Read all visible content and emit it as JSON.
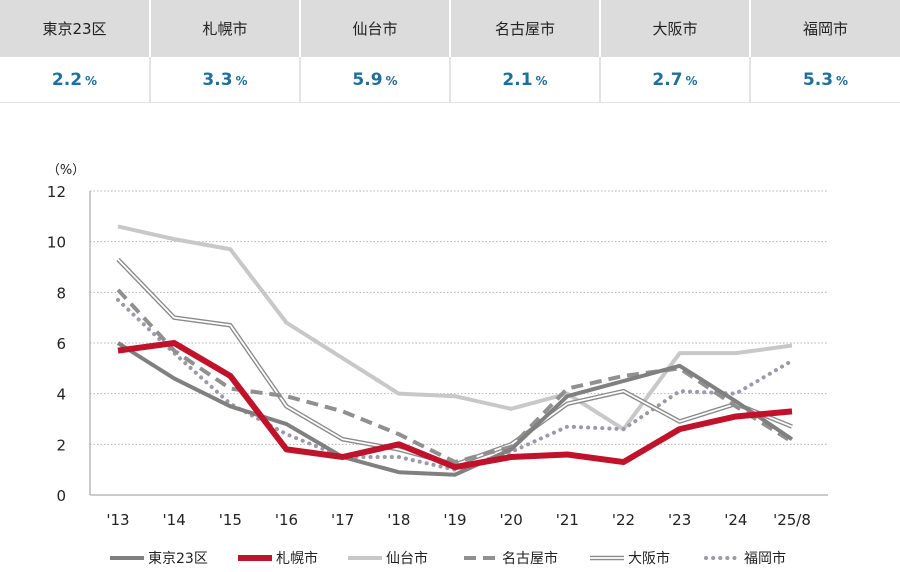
{
  "summary": {
    "headers": [
      "東京23区",
      "札幌市",
      "仙台市",
      "名古屋市",
      "大阪市",
      "福岡市"
    ],
    "values": [
      "2.2",
      "3.3",
      "5.9",
      "2.1",
      "2.7",
      "5.3"
    ],
    "unit": "%"
  },
  "chart_data": {
    "type": "line",
    "y_unit_label": "（%）",
    "categories": [
      "'13",
      "'14",
      "'15",
      "'16",
      "'17",
      "'18",
      "'19",
      "'20",
      "'21",
      "'22",
      "'23",
      "'24",
      "'25/8"
    ],
    "ylim": [
      0,
      12
    ],
    "yticks": [
      0,
      2,
      4,
      6,
      8,
      10,
      12
    ],
    "grid": "horizontal-dotted",
    "legend_position": "bottom",
    "series": [
      {
        "name": "東京23区",
        "values": [
          6.0,
          4.6,
          3.5,
          2.8,
          1.5,
          0.9,
          0.8,
          1.8,
          3.9,
          4.5,
          5.1,
          3.7,
          2.2
        ],
        "color": "#808080",
        "style": "solid-thick"
      },
      {
        "name": "札幌市",
        "values": [
          5.7,
          6.0,
          4.7,
          1.8,
          1.5,
          2.0,
          1.1,
          1.5,
          1.6,
          1.3,
          2.6,
          3.1,
          3.3
        ],
        "color": "#c0122a",
        "style": "solid-bold"
      },
      {
        "name": "仙台市",
        "values": [
          10.6,
          10.1,
          9.7,
          6.8,
          5.4,
          4.0,
          3.9,
          3.4,
          4.0,
          2.6,
          5.6,
          5.6,
          5.9
        ],
        "color": "#c8c8c8",
        "style": "solid-thick"
      },
      {
        "name": "名古屋市",
        "values": [
          8.1,
          5.7,
          4.2,
          3.9,
          3.3,
          2.4,
          1.3,
          1.9,
          4.2,
          4.7,
          5.0,
          3.5,
          2.1
        ],
        "color": "#909090",
        "style": "dashed"
      },
      {
        "name": "大阪市",
        "values": [
          9.3,
          7.0,
          6.7,
          3.5,
          2.2,
          1.8,
          1.2,
          2.0,
          3.6,
          4.1,
          2.9,
          3.6,
          2.7
        ],
        "color": "#8a8a8a",
        "style": "double"
      },
      {
        "name": "福岡市",
        "values": [
          7.7,
          5.6,
          3.6,
          2.4,
          1.5,
          1.5,
          1.0,
          1.7,
          2.7,
          2.6,
          4.1,
          4.0,
          5.3
        ],
        "color": "#9a9aa8",
        "style": "dotted"
      }
    ]
  }
}
